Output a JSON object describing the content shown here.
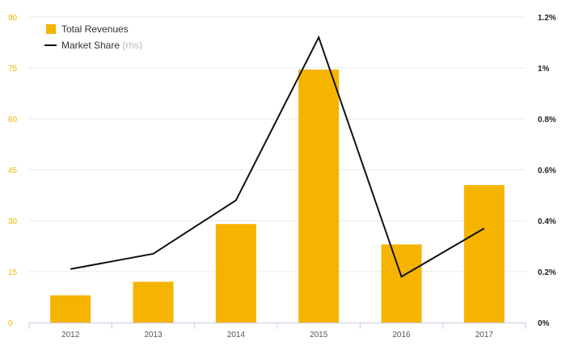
{
  "chart_data": {
    "type": "bar",
    "categories": [
      "2012",
      "2013",
      "2014",
      "2015",
      "2016",
      "2017"
    ],
    "series": [
      {
        "name": "Total Revenues",
        "type": "bar",
        "axis": "left",
        "color": "#f5b400",
        "values": [
          8,
          12,
          29,
          74.5,
          23,
          40.5
        ]
      },
      {
        "name": "Market Share",
        "type": "line",
        "axis": "right",
        "color": "#111111",
        "values": [
          0.0021,
          0.0027,
          0.0048,
          0.0112,
          0.0018,
          0.0037
        ]
      }
    ],
    "left_axis": {
      "ylim": [
        0,
        90
      ],
      "ticks": [
        0,
        15,
        30,
        45,
        60,
        75,
        90
      ],
      "tick_labels": [
        "0",
        "15",
        "30",
        "45",
        "60",
        "75",
        "90"
      ],
      "tick_color": "#f5b400"
    },
    "right_axis": {
      "ylim": [
        0,
        0.012
      ],
      "ticks": [
        0,
        0.002,
        0.004,
        0.006,
        0.008,
        0.01,
        0.012
      ],
      "tick_labels": [
        "0%",
        "0.2%",
        "0.4%",
        "0.6%",
        "0.8%",
        "1%",
        "1.2%"
      ]
    },
    "legend": {
      "placement": "top-left",
      "entries": [
        {
          "label": "Total Revenues",
          "suffix": "",
          "marker": "square",
          "color": "#f5b400"
        },
        {
          "label": "Market Share",
          "suffix": " (rhs)",
          "marker": "line",
          "color": "#111111"
        }
      ]
    },
    "grid": true
  }
}
